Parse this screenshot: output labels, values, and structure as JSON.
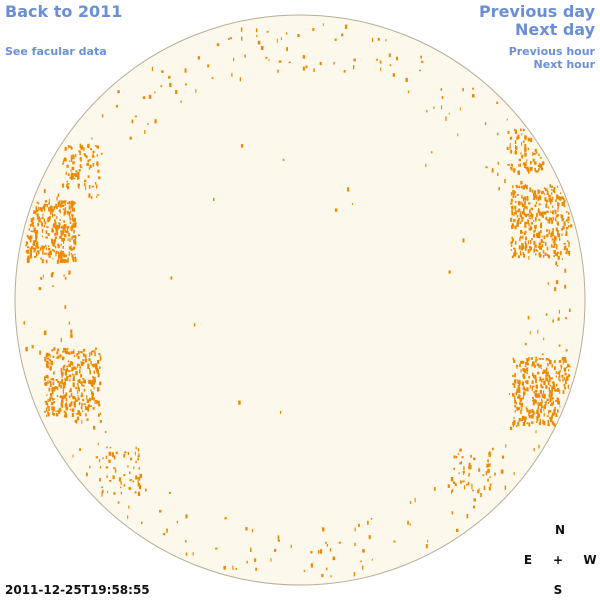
{
  "nav": {
    "back": "Back to 2011",
    "facular": "See facular data",
    "prev_day": "Previous day",
    "next_day": "Next day",
    "prev_hour": "Previous hour",
    "next_hour": "Next hour"
  },
  "compass": {
    "north": "N",
    "east": "E",
    "center": "+",
    "west": "W",
    "south": "S"
  },
  "timestamp": "2011-12-25T19:58:55",
  "colors": {
    "link": "#6a8fd8",
    "disk_fill": "#fdf8ec",
    "disk_stroke": "#b8ad98",
    "faculae": "#ee8800",
    "text": "#111111"
  },
  "icons": {
    "disk": "solar-disk-icon",
    "compass": "compass-rose-icon"
  }
}
